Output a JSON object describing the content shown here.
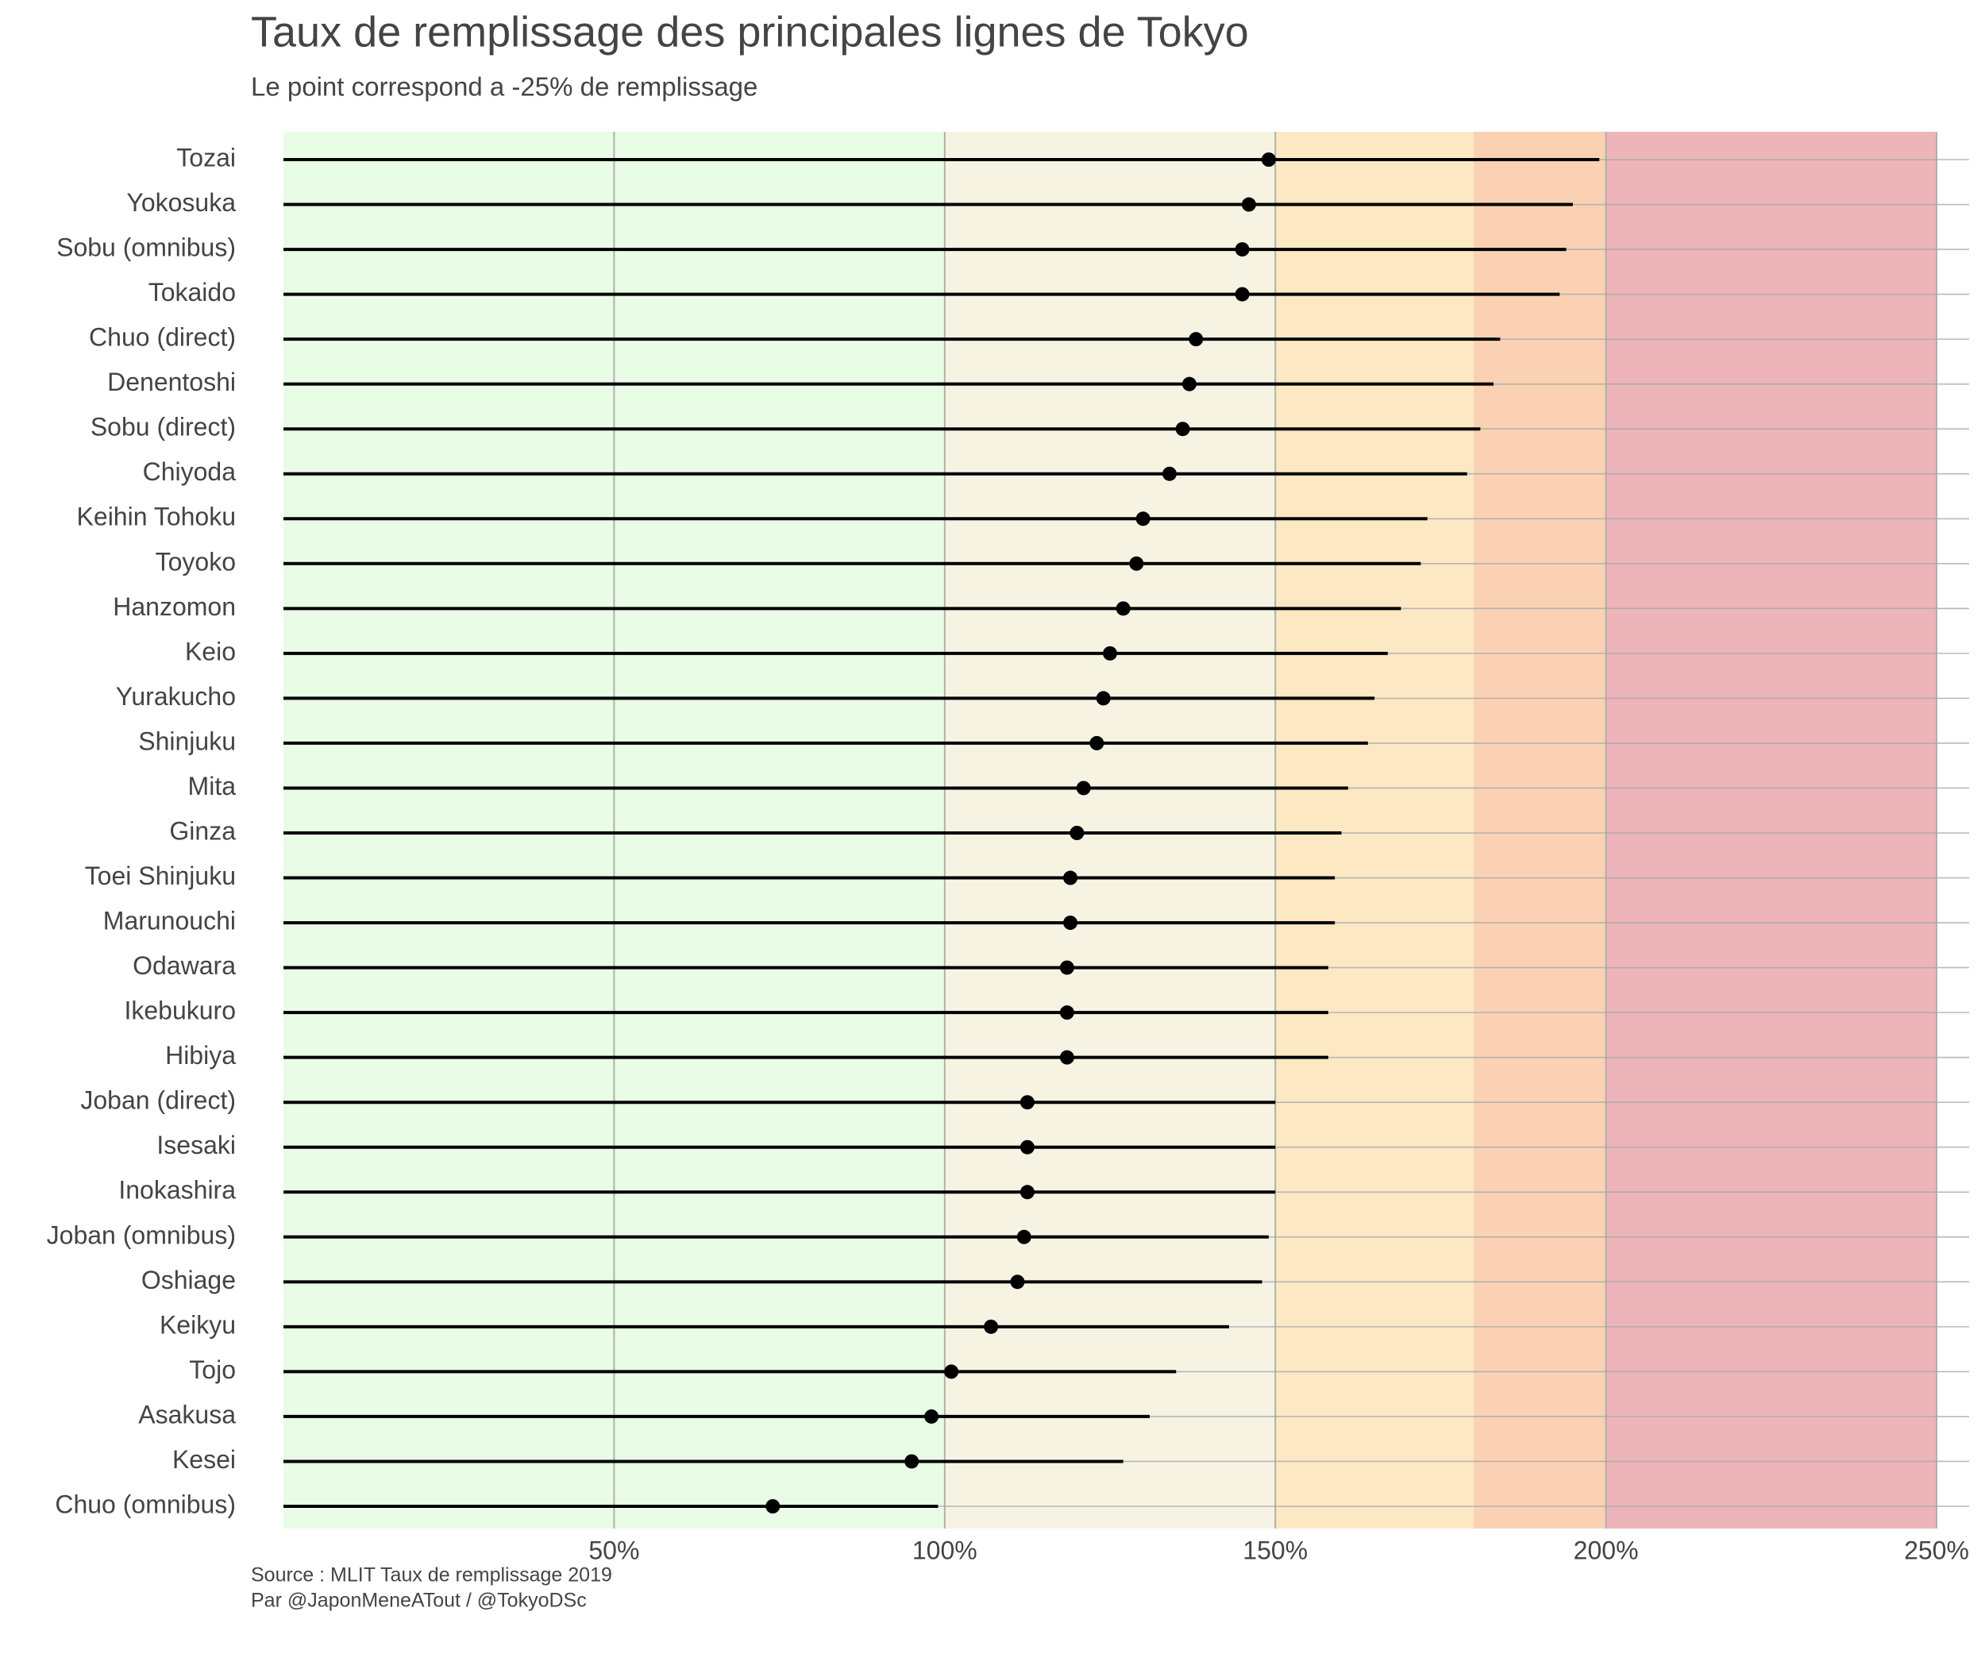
{
  "chart_data": {
    "type": "lollipop",
    "title": "Taux de remplissage des principales lignes de Tokyo",
    "subtitle": "Le point correspond a -25% de remplissage",
    "source": [
      "Source : MLIT Taux de remplissage 2019",
      "Par @JaponMeneATout / @TokyoDSc"
    ],
    "categories": [
      "Tozai",
      "Yokosuka",
      "Sobu (omnibus)",
      "Tokaido",
      "Chuo (direct)",
      "Denentoshi",
      "Sobu (direct)",
      "Chiyoda",
      "Keihin Tohoku",
      "Toyoko",
      "Hanzomon",
      "Keio",
      "Yurakucho",
      "Shinjuku",
      "Mita",
      "Ginza",
      "Toei Shinjuku",
      "Marunouchi",
      "Odawara",
      "Ikebukuro",
      "Hibiya",
      "Joban (direct)",
      "Isesaki",
      "Inokashira",
      "Joban (omnibus)",
      "Oshiage",
      "Keikyu",
      "Tojo",
      "Asakusa",
      "Kesei",
      "Chuo (omnibus)"
    ],
    "values": [
      199,
      195,
      194,
      193,
      184,
      183,
      181,
      179,
      173,
      172,
      169,
      167,
      165,
      164,
      161,
      160,
      159,
      159,
      158,
      158,
      158,
      150,
      150,
      150,
      149,
      148,
      143,
      135,
      131,
      127,
      99
    ],
    "point_values": [
      149,
      146,
      145,
      145,
      138,
      137,
      136,
      134,
      130,
      129,
      127,
      125,
      124,
      123,
      121,
      120,
      119,
      119,
      118.5,
      118.5,
      118.5,
      112.5,
      112.5,
      112.5,
      112,
      111,
      107,
      101,
      98,
      95,
      74
    ],
    "color": "#000000",
    "xlim": [
      0,
      250
    ],
    "xticks": [
      {
        "value": 50,
        "label": "50%"
      },
      {
        "value": 100,
        "label": "100%"
      },
      {
        "value": 150,
        "label": "150%"
      },
      {
        "value": 200,
        "label": "200%"
      },
      {
        "value": 250,
        "label": "250%"
      }
    ],
    "bands": [
      {
        "from": 0,
        "to": 100,
        "color": "#e9fde6"
      },
      {
        "from": 100,
        "to": 150,
        "color": "#f6f3e3"
      },
      {
        "from": 150,
        "to": 180,
        "color": "#fde8c4"
      },
      {
        "from": 180,
        "to": 200,
        "color": "#fad2b3"
      },
      {
        "from": 200,
        "to": 250,
        "color": "#edb5b9"
      }
    ],
    "grid": true
  }
}
